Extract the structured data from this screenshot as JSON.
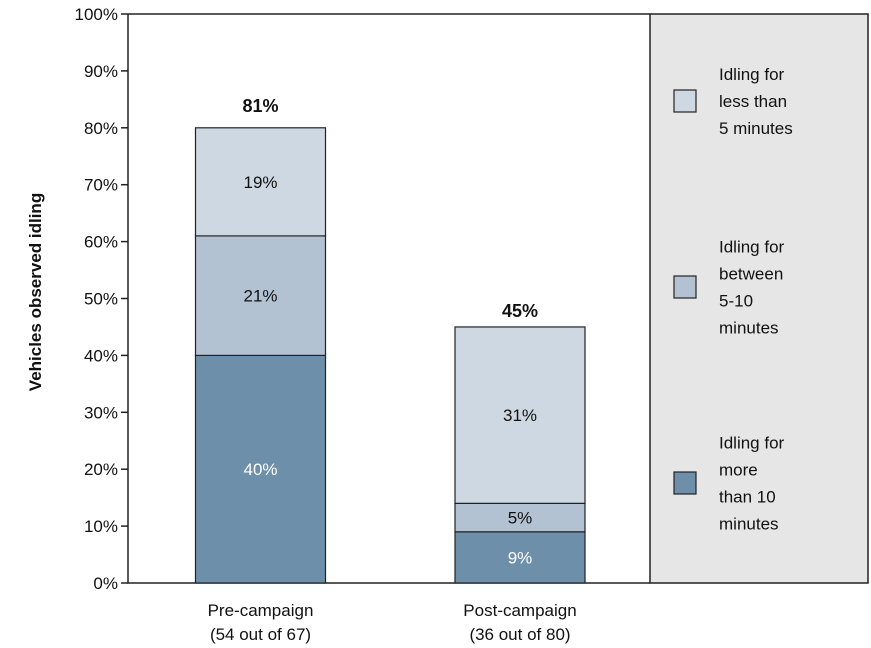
{
  "chart_data": {
    "type": "bar",
    "stacked": true,
    "ylabel": "Vehicles observed idling",
    "xlabel": "",
    "ylim": [
      0,
      100
    ],
    "y_ticks": [
      "0%",
      "10%",
      "20%",
      "30%",
      "40%",
      "50%",
      "60%",
      "70%",
      "80%",
      "90%",
      "100%"
    ],
    "categories": [
      [
        "Pre-campaign",
        "(54 out of 67)"
      ],
      [
        "Post-campaign",
        "(36 out of 80)"
      ]
    ],
    "series": [
      {
        "name": "Idling for more than 10 minutes",
        "legend_lines": [
          "Idling for",
          "more",
          "than 10",
          "minutes"
        ],
        "color": "#6e8faa",
        "label_color": "#ffffff",
        "values": [
          40,
          9
        ],
        "labels": [
          "40%",
          "9%"
        ]
      },
      {
        "name": "Idling for between 5-10 minutes",
        "legend_lines": [
          "Idling for",
          "between",
          "5-10",
          "minutes"
        ],
        "color": "#b3c2d3",
        "label_color": "#111111",
        "values": [
          21,
          5
        ],
        "labels": [
          "21%",
          "5%"
        ]
      },
      {
        "name": "Idling for less than 5 minutes",
        "legend_lines": [
          "Idling for",
          "less than",
          "5 minutes"
        ],
        "color": "#cdd8e2",
        "label_color": "#111111",
        "values": [
          19,
          31
        ],
        "labels": [
          "19%",
          "31%"
        ]
      }
    ],
    "totals": [
      81,
      45
    ],
    "total_labels": [
      "81%",
      "45%"
    ],
    "grid": false,
    "legend_position": "right",
    "legend_background": "#e6e6e6"
  }
}
